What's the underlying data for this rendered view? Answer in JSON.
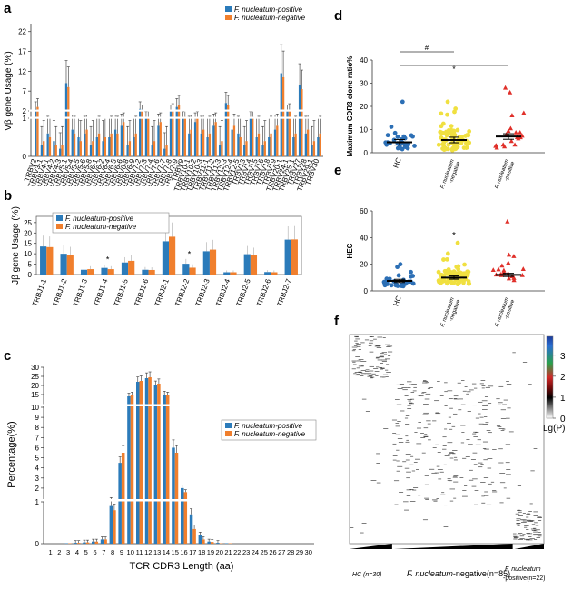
{
  "colors": {
    "positive": "#2b7bba",
    "negative": "#f07f2d",
    "hc_dot": "#2c6fb5",
    "neg_dot": "#f0e040",
    "pos_dot": "#e0302a"
  },
  "legend": {
    "positive": "F. nucleatum-positive",
    "negative": "F. nucleatum-negative"
  },
  "chart_data": [
    {
      "panel": "a",
      "type": "bar",
      "ylabel": "Vβ gene Usage (%)",
      "ylim": [
        0,
        24
      ],
      "yticks": [
        "0",
        "1",
        "2",
        "7",
        "12",
        "17",
        "22"
      ],
      "categories": [
        "TRBV2",
        "TRBV3-1",
        "TRBV4-1",
        "TRBV4-2",
        "TRBV4-3",
        "TRBV5-1",
        "TRBV5-4",
        "TRBV5-5",
        "TRBV5-6",
        "TRBV5-8",
        "TRBV6-1",
        "TRBV6-2",
        "TRBV6-4",
        "TRBV6-5",
        "TRBV6-6",
        "TRBV6-8",
        "TRBV6-9",
        "TRBV7-2",
        "TRBV7-3",
        "TRBV7-4",
        "TRBV7-6",
        "TRBV7-7",
        "TRBV7-8",
        "TRBV7-9",
        "TRBV9",
        "TRBV10-1",
        "TRBV10-2",
        "TRBV10-3",
        "TRBV11-1",
        "TRBV11-2",
        "TRBV11-3",
        "TRBV12-3",
        "TRBV12-4",
        "TRBV12-5",
        "TRBV13",
        "TRBV14",
        "TRBV15",
        "TRBV16",
        "TRBV18",
        "TRBV19",
        "TRBV20-1",
        "TRBV24-1",
        "TRBV25-1",
        "TRBV27",
        "TRBV28",
        "TRBV29-1",
        "TRBV30"
      ],
      "series": [
        {
          "name": "F. nucleatum-positive",
          "values": [
            2.5,
            0.3,
            0.6,
            0.4,
            0.2,
            9.0,
            0.7,
            0.5,
            0.6,
            0.3,
            0.5,
            0.4,
            0.5,
            0.7,
            0.8,
            0.3,
            0.5,
            2.5,
            1.0,
            0.3,
            0.8,
            0.2,
            2.0,
            3.0,
            1.0,
            0.6,
            0.9,
            0.6,
            0.5,
            0.8,
            0.3,
            4.0,
            0.7,
            0.6,
            0.3,
            1.0,
            0.5,
            0.3,
            0.5,
            0.7,
            11.5,
            2.0,
            0.5,
            8.5,
            0.6,
            0.3,
            0.5
          ]
        },
        {
          "name": "F. nucleatum-negative",
          "values": [
            3.0,
            0.4,
            0.5,
            0.3,
            0.3,
            8.0,
            0.6,
            0.4,
            0.7,
            0.4,
            0.6,
            0.5,
            0.6,
            0.6,
            0.9,
            0.4,
            0.6,
            2.0,
            1.1,
            0.4,
            0.9,
            0.3,
            2.2,
            3.5,
            1.2,
            0.7,
            1.0,
            0.7,
            0.6,
            0.9,
            0.4,
            3.5,
            0.8,
            0.5,
            0.4,
            1.2,
            0.6,
            0.4,
            0.6,
            0.8,
            10.5,
            2.2,
            0.6,
            7.5,
            0.7,
            0.4,
            0.6
          ]
        }
      ]
    },
    {
      "panel": "b",
      "type": "bar",
      "ylabel": "Jβ gene Usage (%)",
      "ylim": [
        0,
        28
      ],
      "yticks": [
        0,
        5,
        10,
        15,
        20,
        25
      ],
      "categories": [
        "TRBJ1-1",
        "TRBJ1-2",
        "TRBJ1-3",
        "TRBJ1-4",
        "TRBJ1-5",
        "TRBJ1-6",
        "TRBJ2-1",
        "TRBJ2-2",
        "TRBJ2-3",
        "TRBJ2-4",
        "TRBJ2-5",
        "TRBJ2-6",
        "TRBJ2-7"
      ],
      "series": [
        {
          "name": "F. nucleatum-positive",
          "values": [
            13.5,
            10.0,
            2.3,
            3.2,
            5.8,
            2.3,
            16.0,
            5.2,
            11.2,
            1.1,
            9.8,
            1.2,
            16.8
          ]
        },
        {
          "name": "F. nucleatum-negative",
          "values": [
            13.2,
            9.5,
            2.6,
            2.6,
            6.6,
            2.2,
            18.2,
            3.3,
            12.0,
            1.1,
            9.2,
            1.1,
            16.9
          ]
        }
      ],
      "annotations": [
        "*"
      ]
    },
    {
      "panel": "c",
      "type": "bar",
      "xlabel": "TCR CDR3 Length (aa)",
      "ylabel": "Percentage(%)",
      "ylim": [
        0,
        30
      ],
      "yticks": [
        "0",
        "1",
        "2",
        "3",
        "4",
        "5",
        "6",
        "7",
        "8",
        "9",
        "10",
        "15",
        "20",
        "25",
        "30"
      ],
      "categories": [
        "1",
        "2",
        "3",
        "4",
        "5",
        "6",
        "7",
        "8",
        "9",
        "10",
        "11",
        "12",
        "13",
        "14",
        "15",
        "16",
        "17",
        "18",
        "19",
        "20",
        "21",
        "22",
        "23",
        "24",
        "25",
        "26",
        "27",
        "28",
        "29",
        "30"
      ],
      "series": [
        {
          "name": "F. nucleatum-positive",
          "values": [
            0,
            0,
            0.01,
            0.02,
            0.03,
            0.05,
            0.1,
            0.9,
            4.5,
            14,
            22,
            24,
            20,
            15,
            6,
            2,
            0.7,
            0.2,
            0.05,
            0.02,
            0.01,
            0,
            0,
            0,
            0,
            0,
            0,
            0,
            0,
            0
          ]
        },
        {
          "name": "F. nucleatum-negative",
          "values": [
            0,
            0,
            0.01,
            0.02,
            0.03,
            0.05,
            0.1,
            0.8,
            5.5,
            14.5,
            22.5,
            24.5,
            21,
            14.5,
            5.5,
            1.6,
            0.35,
            0.1,
            0.04,
            0.01,
            0.01,
            0,
            0,
            0,
            0,
            0,
            0,
            0,
            0,
            0
          ]
        }
      ]
    },
    {
      "panel": "d",
      "type": "scatter",
      "ylabel": "Maximum CDR3 clone ratio%",
      "ylim": [
        0,
        40
      ],
      "yticks": [
        0,
        10,
        20,
        30,
        40
      ],
      "categories": [
        "HC",
        "F. nucleatum -negative",
        "F. nucleatum -positive"
      ],
      "means": [
        4.5,
        5.5,
        7
      ],
      "sig": [
        "#",
        "*"
      ]
    },
    {
      "panel": "e",
      "type": "scatter",
      "ylabel": "HEC",
      "ylim": [
        0,
        60
      ],
      "yticks": [
        0,
        20,
        40,
        60
      ],
      "categories": [
        "HC",
        "F. nucleatum -negative",
        "F. nucleatum -positive"
      ],
      "means": [
        7.5,
        10,
        12
      ],
      "sig": [
        "*"
      ]
    },
    {
      "panel": "f",
      "type": "heatmap",
      "legend_label": "Lg(P)",
      "colorbar_ticks": [
        0,
        1,
        2,
        3
      ],
      "groups": [
        {
          "label": "HC (n=30)",
          "n": 30
        },
        {
          "label": "F. nucleatum-negative(n=85)",
          "n": 85
        },
        {
          "label": "F. nucleatum -positive(n=22)",
          "n": 22
        }
      ]
    }
  ]
}
